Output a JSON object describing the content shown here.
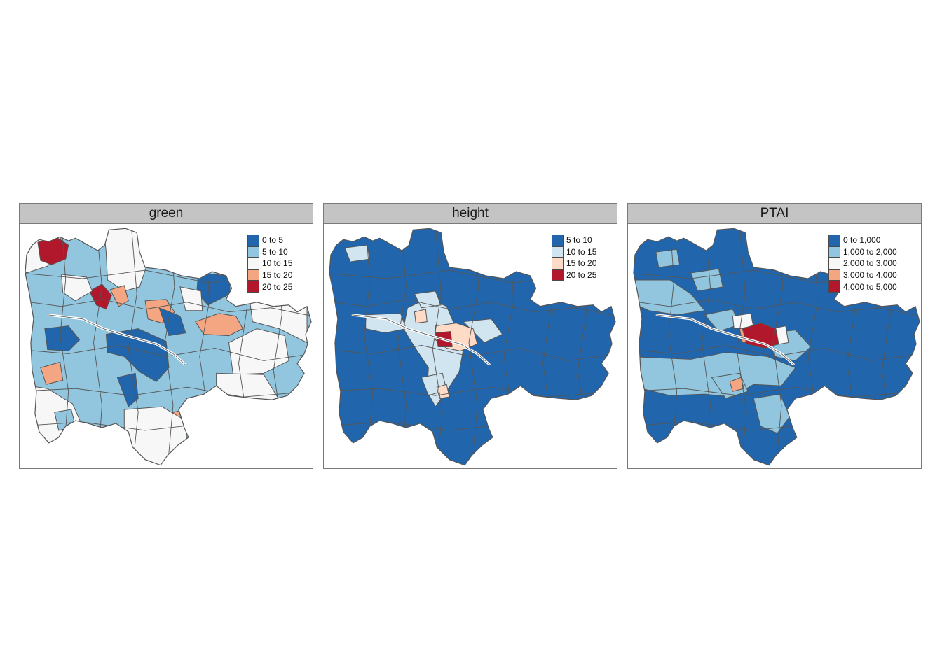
{
  "panels": [
    {
      "title": "green",
      "legend": [
        {
          "label": "0 to 5",
          "color": "#2166ac"
        },
        {
          "label": "5 to 10",
          "color": "#92c5de"
        },
        {
          "label": "10 to 15",
          "color": "#f7f7f7"
        },
        {
          "label": "15 to 20",
          "color": "#f4a582"
        },
        {
          "label": "20 to 25",
          "color": "#b2182b"
        }
      ]
    },
    {
      "title": "height",
      "legend": [
        {
          "label": "5 to 10",
          "color": "#2166ac"
        },
        {
          "label": "10 to 15",
          "color": "#d1e5f0"
        },
        {
          "label": "15 to 20",
          "color": "#fddbc7"
        },
        {
          "label": "20 to 25",
          "color": "#b2182b"
        }
      ]
    },
    {
      "title": "PTAI",
      "legend": [
        {
          "label": "0 to 1,000",
          "color": "#2166ac"
        },
        {
          "label": "1,000 to 2,000",
          "color": "#92c5de"
        },
        {
          "label": "2,000 to 3,000",
          "color": "#f7f7f7"
        },
        {
          "label": "3,000 to 4,000",
          "color": "#f4a582"
        },
        {
          "label": "4,000 to 5,000",
          "color": "#b2182b"
        }
      ]
    }
  ]
}
